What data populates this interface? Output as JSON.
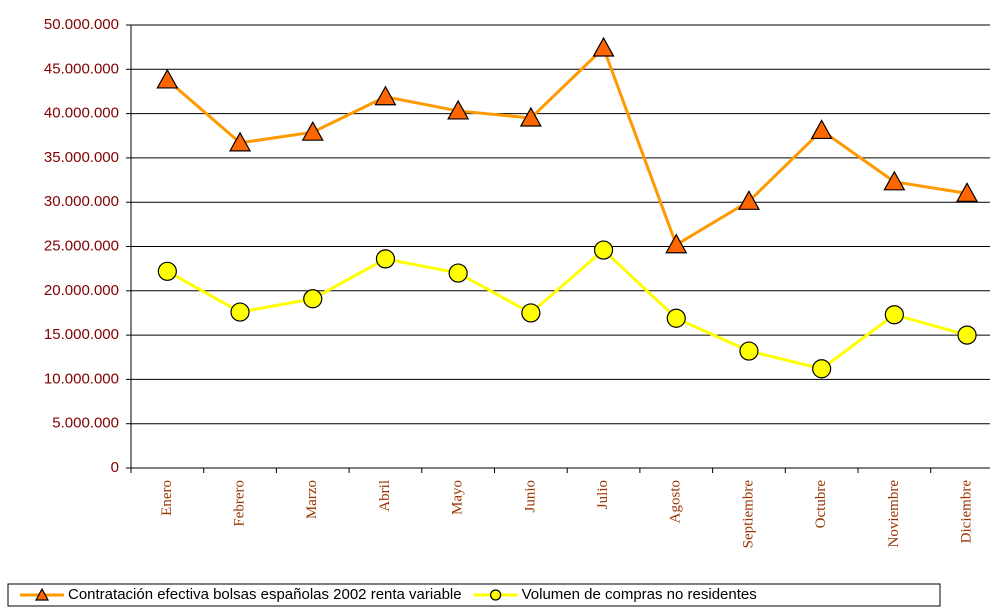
{
  "chart_data": {
    "type": "line",
    "categories": [
      "Enero",
      "Febrero",
      "Marzo",
      "Abril",
      "Mayo",
      "Junio",
      "Julio",
      "Agosto",
      "Septiembre",
      "Octubre",
      "Noviembre",
      "Diciembre"
    ],
    "series": [
      {
        "name": "Contratación efectiva bolsas españolas 2002 renta variable",
        "color": "#ff9900",
        "marker_color": "#ff6600",
        "marker": "triangle",
        "values": [
          43800000,
          36700000,
          37900000,
          41900000,
          40300000,
          39500000,
          47400000,
          25200000,
          30100000,
          38100000,
          32300000,
          31000000
        ]
      },
      {
        "name": "Volumen de compras no residentes",
        "color": "#ffff00",
        "marker_color": "#ffff00",
        "marker": "circle",
        "values": [
          22200000,
          17600000,
          19100000,
          23600000,
          22000000,
          17500000,
          24600000,
          16900000,
          13200000,
          11200000,
          17300000,
          15000000
        ]
      }
    ],
    "ylim": [
      0,
      50000000
    ],
    "yticks": [
      0,
      {
        "value": 5000000,
        "label": "5.000.000"
      },
      {
        "value": 10000000,
        "label": "10.000.000"
      },
      {
        "value": 15000000,
        "label": "15.000.000"
      },
      {
        "value": 20000000,
        "label": "20.000.000"
      },
      {
        "value": 25000000,
        "label": "25.000.000"
      },
      {
        "value": 30000000,
        "label": "30.000.000"
      },
      {
        "value": 35000000,
        "label": "35.000.000"
      },
      {
        "value": 40000000,
        "label": "40.000.000"
      },
      {
        "value": 45000000,
        "label": "45.000.000"
      },
      {
        "value": 50000000,
        "label": "50.000.000"
      }
    ],
    "grid": true,
    "legend": "bottom"
  }
}
